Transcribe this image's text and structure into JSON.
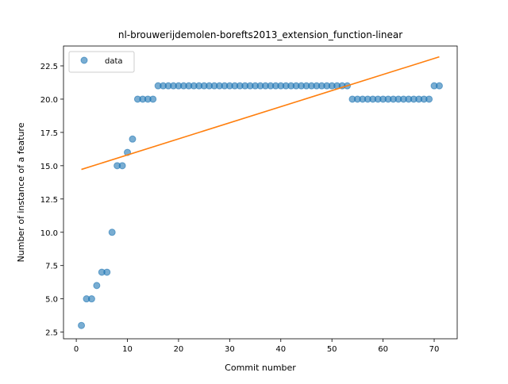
{
  "chart_data": {
    "type": "scatter",
    "title": "nl-brouwerijdemolen-borefts2013_extension_function-linear",
    "xlabel": "Commit number",
    "ylabel": "Number of instance of a feature",
    "xlim": [
      -2.5,
      74.5
    ],
    "ylim": [
      2.0,
      23.99
    ],
    "xticks": [
      0,
      10,
      20,
      30,
      40,
      50,
      60,
      70
    ],
    "yticks": [
      2.5,
      5.0,
      7.5,
      10.0,
      12.5,
      15.0,
      17.5,
      20.0,
      22.5
    ],
    "ytick_labels": [
      "2.5",
      "5.0",
      "7.5",
      "10.0",
      "12.5",
      "15.0",
      "17.5",
      "20.0",
      "22.5"
    ],
    "legend_position": "upper-left",
    "series": [
      {
        "name": "data",
        "kind": "scatter",
        "color": "#1f77b4",
        "x": [
          1,
          2,
          3,
          4,
          5,
          6,
          7,
          8,
          9,
          10,
          11,
          12,
          13,
          14,
          15,
          16,
          17,
          18,
          19,
          20,
          21,
          22,
          23,
          24,
          25,
          26,
          27,
          28,
          29,
          30,
          31,
          32,
          33,
          34,
          35,
          36,
          37,
          38,
          39,
          40,
          41,
          42,
          43,
          44,
          45,
          46,
          47,
          48,
          49,
          50,
          51,
          52,
          53,
          54,
          55,
          56,
          57,
          58,
          59,
          60,
          61,
          62,
          63,
          64,
          65,
          66,
          67,
          68,
          69,
          70,
          71
        ],
        "y": [
          3,
          5,
          5,
          6,
          7,
          7,
          10,
          15,
          15,
          16,
          17,
          20,
          20,
          20,
          20,
          21,
          21,
          21,
          21,
          21,
          21,
          21,
          21,
          21,
          21,
          21,
          21,
          21,
          21,
          21,
          21,
          21,
          21,
          21,
          21,
          21,
          21,
          21,
          21,
          21,
          21,
          21,
          21,
          21,
          21,
          21,
          21,
          21,
          21,
          21,
          21,
          21,
          21,
          20,
          20,
          20,
          20,
          20,
          20,
          20,
          20,
          20,
          20,
          20,
          20,
          20,
          20,
          20,
          20,
          21,
          21
        ]
      },
      {
        "kind": "line",
        "color": "#ff7f0e",
        "x": [
          1,
          71
        ],
        "y": [
          14.72,
          23.18
        ]
      }
    ]
  }
}
